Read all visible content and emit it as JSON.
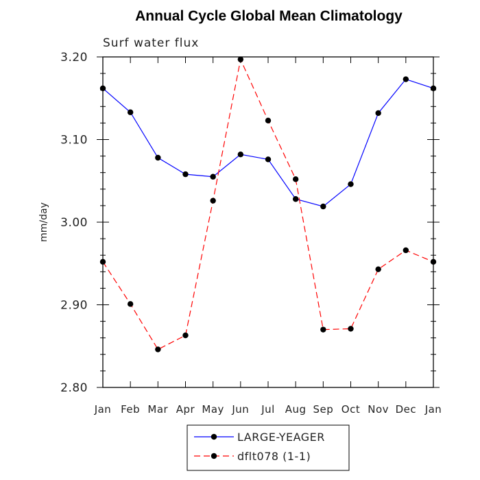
{
  "chart_data": {
    "type": "line",
    "title": "Annual Cycle Global Mean Climatology",
    "subtitle": "Surf water flux",
    "xlabel": "",
    "ylabel": "mm/day",
    "categories": [
      "Jan",
      "Feb",
      "Mar",
      "Apr",
      "May",
      "Jun",
      "Jul",
      "Aug",
      "Sep",
      "Oct",
      "Nov",
      "Dec",
      "Jan"
    ],
    "ylim": [
      2.8,
      3.2
    ],
    "yticks": [
      2.8,
      2.9,
      3.0,
      3.1,
      3.2
    ],
    "ytick_labels": [
      "2.80",
      "2.90",
      "3.00",
      "3.10",
      "3.20"
    ],
    "grid": false,
    "legend_position": "bottom-center",
    "series": [
      {
        "name": "LARGE-YEAGER",
        "color": "#0000ff",
        "dash": "solid",
        "marker": "filled-circle",
        "values": [
          3.162,
          3.133,
          3.078,
          3.058,
          3.055,
          3.082,
          3.076,
          3.028,
          3.019,
          3.046,
          3.132,
          3.173,
          3.162
        ]
      },
      {
        "name": "dflt078 (1-1)",
        "color": "#ff0000",
        "dash": "dashed",
        "marker": "filled-circle",
        "values": [
          2.952,
          2.901,
          2.846,
          2.863,
          3.026,
          3.197,
          3.123,
          3.052,
          2.87,
          2.871,
          2.943,
          2.966,
          2.952
        ]
      }
    ]
  }
}
